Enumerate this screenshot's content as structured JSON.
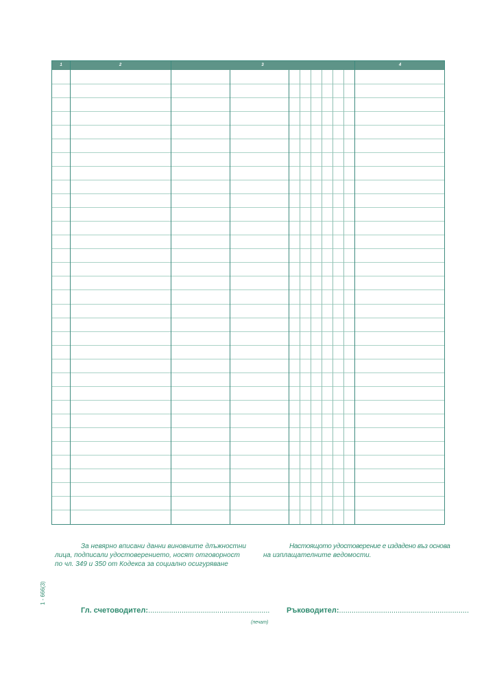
{
  "table": {
    "columns": [
      "1",
      "2",
      "3",
      "4"
    ],
    "row_count": 33
  },
  "notes": {
    "left_lines": [
      "За невярно вписани данни виновните длъжностни",
      "лица, подписали удостоверението, носят отговорност",
      "по чл. 349 и 350 от Кодекса за социално осигуряване"
    ],
    "right_lines": [
      "Настоящото удостоверение е издадено въз основа",
      "на изплащателните ведомости."
    ]
  },
  "signatures": {
    "accountant_label": "Гл. счетоводител:",
    "accountant_dots": "..........................................................",
    "manager_label": "Ръководител:",
    "manager_dots": "..............................................................",
    "stamp": "(печат)"
  },
  "form_code": "1 - 666(3)",
  "colors": {
    "accent": "#3d8a7e",
    "header_fill": "#5e9488",
    "text": "#2e8a6e"
  }
}
